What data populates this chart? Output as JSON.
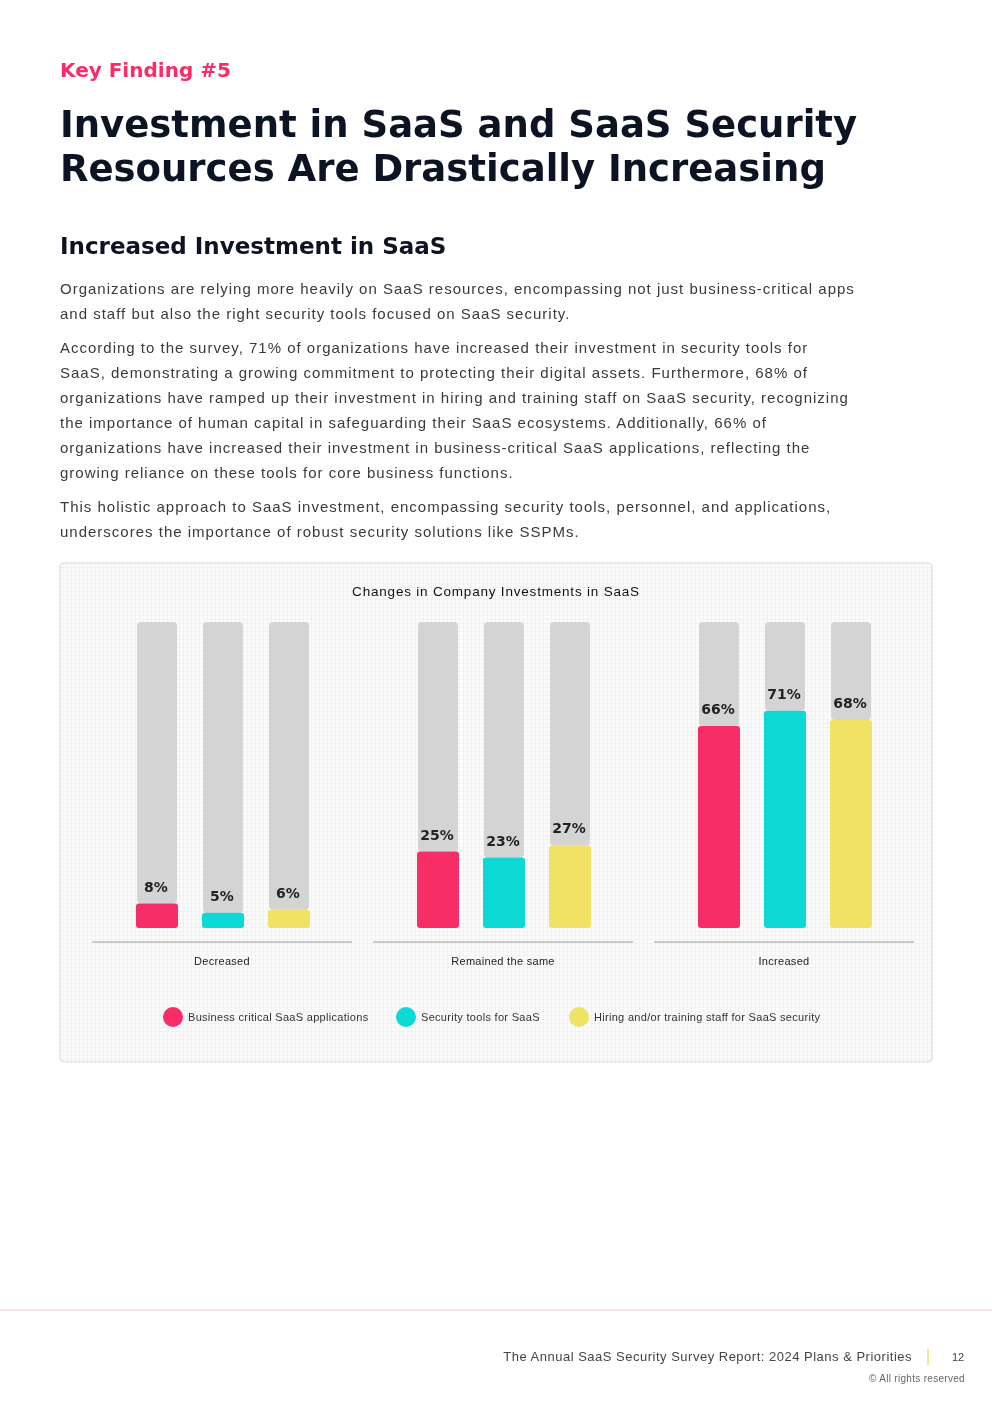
{
  "chart_data": {
    "type": "bar",
    "title": "Changes in Company Investments in SaaS",
    "categories": [
      "Decreased",
      "Remained the same",
      "Increased"
    ],
    "series": [
      {
        "name": "Business critical SaaS applications",
        "color": "#f72d67",
        "values": [
          8,
          25,
          66
        ],
        "value_labels": [
          "8%",
          "25%",
          "66%"
        ]
      },
      {
        "name": "Security tools for SaaS",
        "color": "#0dd9d4",
        "values": [
          5,
          23,
          71
        ],
        "value_labels": [
          "5%",
          "23%",
          "71%"
        ]
      },
      {
        "name": "Hiring and/or training staff for SaaS security",
        "color": "#f0e264",
        "values": [
          6,
          27,
          68
        ],
        "value_labels": [
          "6%",
          "27%",
          "68%"
        ]
      }
    ],
    "ylim": [
      0,
      100
    ],
    "tick_labels": "x",
    "legend": "bottom",
    "annotations": [
      "Key Finding #5",
      "Investment in SaaS and SaaS Security Resources Are Drastically Increasing",
      "Increased Investment in SaaS",
      "Organizations are relying more heavily on SaaS resources, encompassing not just business-critical apps and staff but also the right security tools focused on SaaS security.",
      "According to the survey, 71% of organizations have increased their investment in security tools for SaaS, demonstrating a growing commitment to protecting their digital assets. Furthermore, 68% of organizations have ramped up their investment in hiring and training staff on SaaS security, recognizing the importance of human capital in safeguarding their SaaS ecosystems. Additionally, 66% of organizations have increased their investment in business-critical SaaS applications, reflecting the growing reliance on these tools for core business functions.",
      "This holistic approach to SaaS investment, encompassing security tools, personnel, and applications, underscores the importance of robust security solutions like SSPMs.",
      "The Annual SaaS Security Survey Report: 2024 Plans & Priorities",
      "12",
      "© All rights reserved"
    ]
  }
}
